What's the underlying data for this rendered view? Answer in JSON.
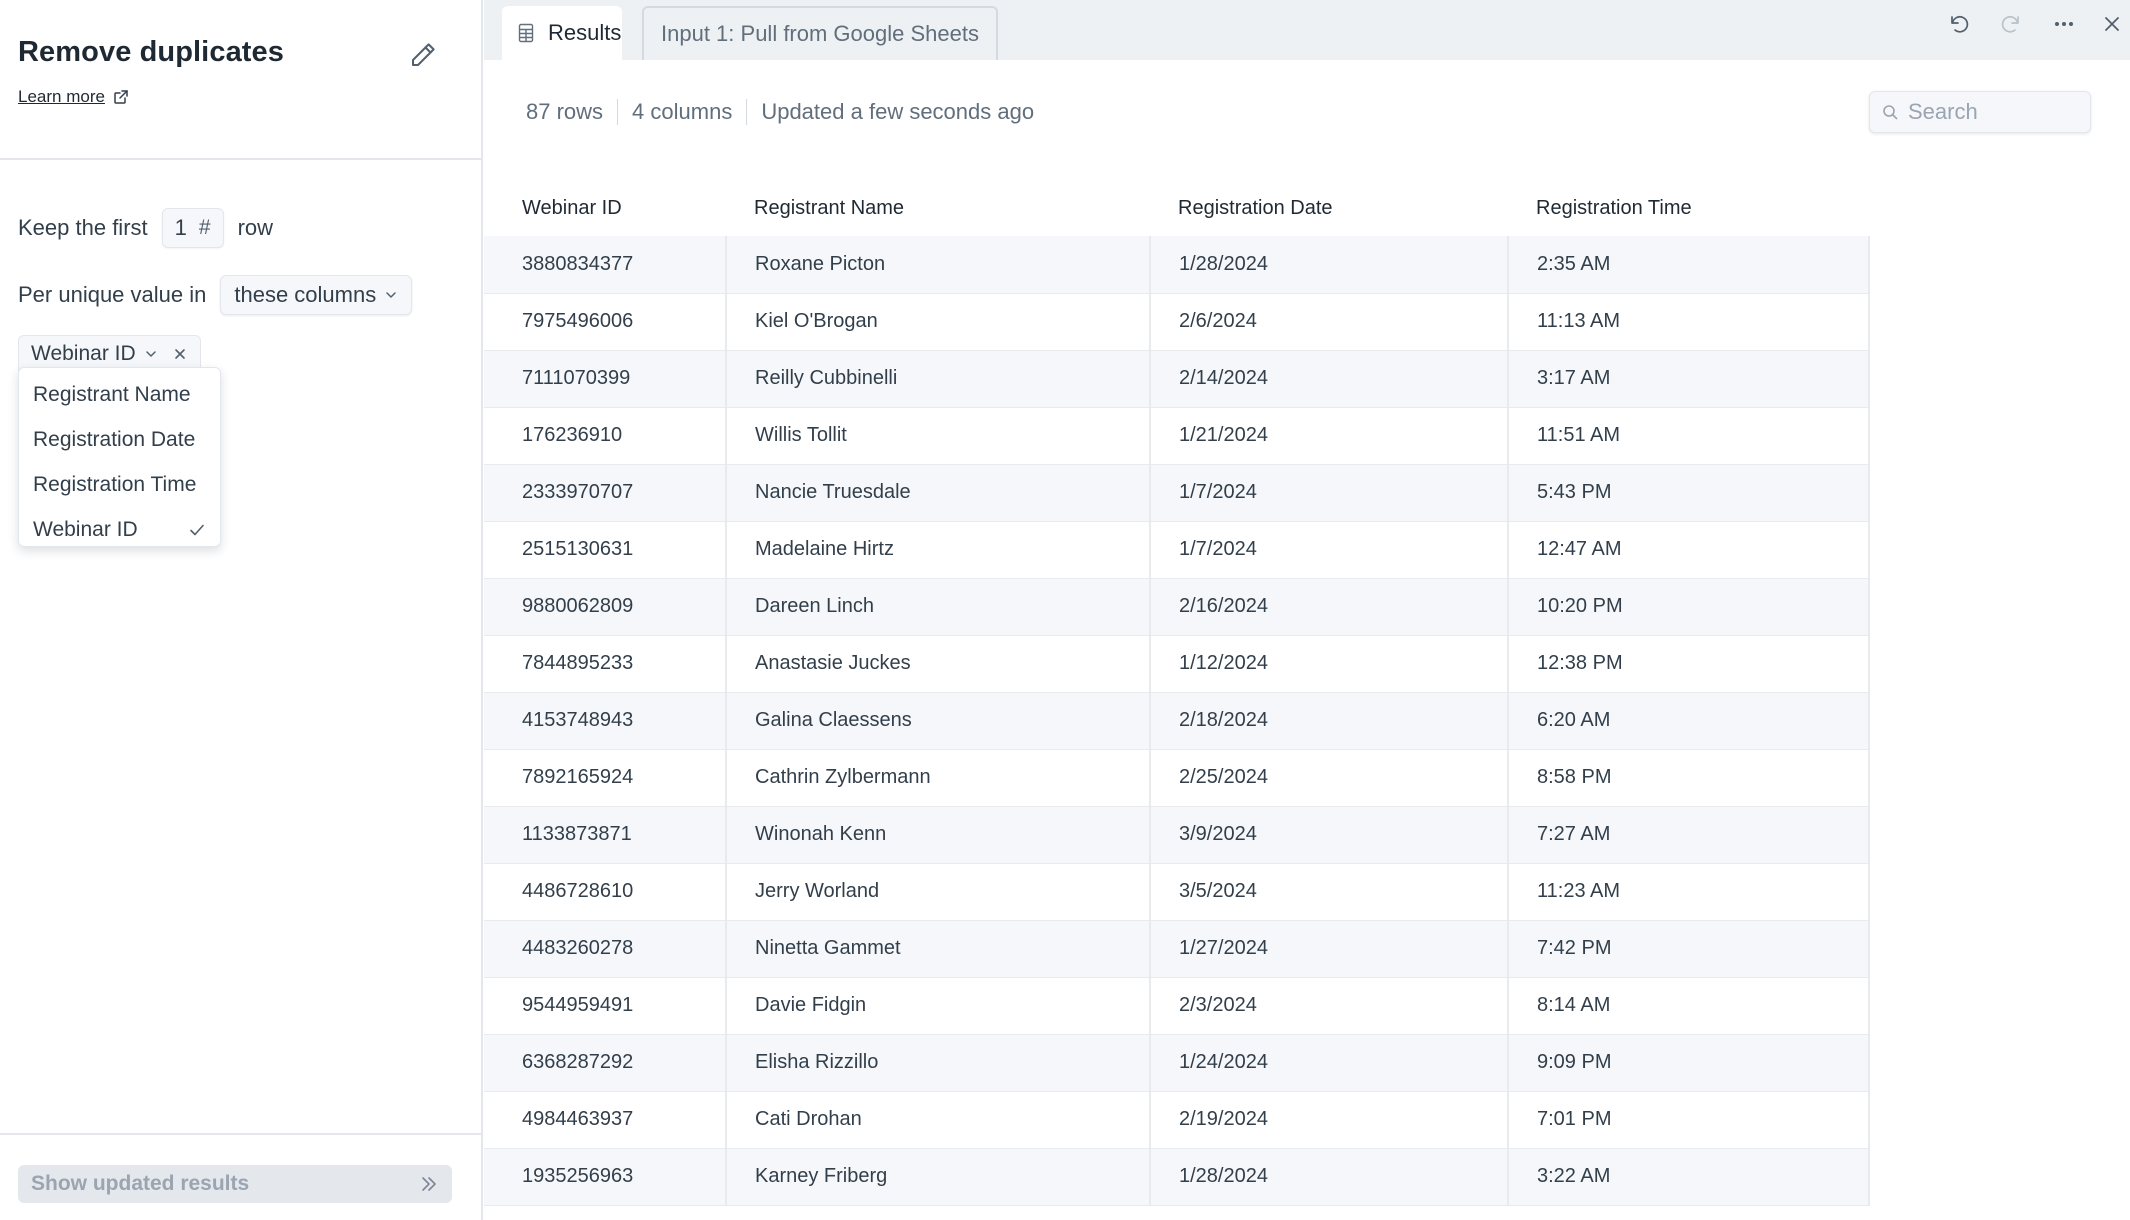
{
  "panel": {
    "title": "Remove duplicates",
    "learn_more": "Learn more",
    "keep_label": "Keep the first",
    "keep_value": "1",
    "keep_suffix": "row",
    "per_unique_label": "Per unique value in",
    "columns_select": "these columns",
    "selected_chip": "Webinar ID",
    "dropdown_options": [
      {
        "label": "Registrant Name",
        "checked": false
      },
      {
        "label": "Registration Date",
        "checked": false
      },
      {
        "label": "Registration Time",
        "checked": false
      },
      {
        "label": "Webinar ID",
        "checked": true
      }
    ],
    "show_results_button": "Show updated results"
  },
  "tabs": [
    {
      "label": "Results",
      "active": true
    },
    {
      "label": "Input 1: Pull from Google Sheets",
      "active": false
    }
  ],
  "toolbar": {
    "icons": [
      "undo-icon",
      "redo-icon",
      "more-icon",
      "close-icon"
    ]
  },
  "stats": {
    "rows": "87 rows",
    "columns": "4 columns",
    "updated": "Updated a few seconds ago"
  },
  "search": {
    "placeholder": "Search"
  },
  "table": {
    "headers": [
      "Webinar ID",
      "Registrant Name",
      "Registration Date",
      "Registration Time"
    ],
    "rows": [
      [
        "3880834377",
        "Roxane Picton",
        "1/28/2024",
        "2:35 AM"
      ],
      [
        "7975496006",
        "Kiel O'Brogan",
        "2/6/2024",
        "11:13 AM"
      ],
      [
        "7111070399",
        "Reilly Cubbinelli",
        "2/14/2024",
        "3:17 AM"
      ],
      [
        "176236910",
        "Willis Tollit",
        "1/21/2024",
        "11:51 AM"
      ],
      [
        "2333970707",
        "Nancie Truesdale",
        "1/7/2024",
        "5:43 PM"
      ],
      [
        "2515130631",
        "Madelaine Hirtz",
        "1/7/2024",
        "12:47 AM"
      ],
      [
        "9880062809",
        "Dareen Linch",
        "2/16/2024",
        "10:20 PM"
      ],
      [
        "7844895233",
        "Anastasie Juckes",
        "1/12/2024",
        "12:38 PM"
      ],
      [
        "4153748943",
        "Galina Claessens",
        "2/18/2024",
        "6:20 AM"
      ],
      [
        "7892165924",
        "Cathrin Zylbermann",
        "2/25/2024",
        "8:58 PM"
      ],
      [
        "1133873871",
        "Winonah Kenn",
        "3/9/2024",
        "7:27 AM"
      ],
      [
        "4486728610",
        "Jerry Worland",
        "3/5/2024",
        "11:23 AM"
      ],
      [
        "4483260278",
        "Ninetta Gammet",
        "1/27/2024",
        "7:42 PM"
      ],
      [
        "9544959491",
        "Davie Fidgin",
        "2/3/2024",
        "8:14 AM"
      ],
      [
        "6368287292",
        "Elisha Rizzillo",
        "1/24/2024",
        "9:09 PM"
      ],
      [
        "4984463937",
        "Cati Drohan",
        "2/19/2024",
        "7:01 PM"
      ],
      [
        "1935256963",
        "Karney Friberg",
        "1/28/2024",
        "3:22 AM"
      ]
    ]
  }
}
